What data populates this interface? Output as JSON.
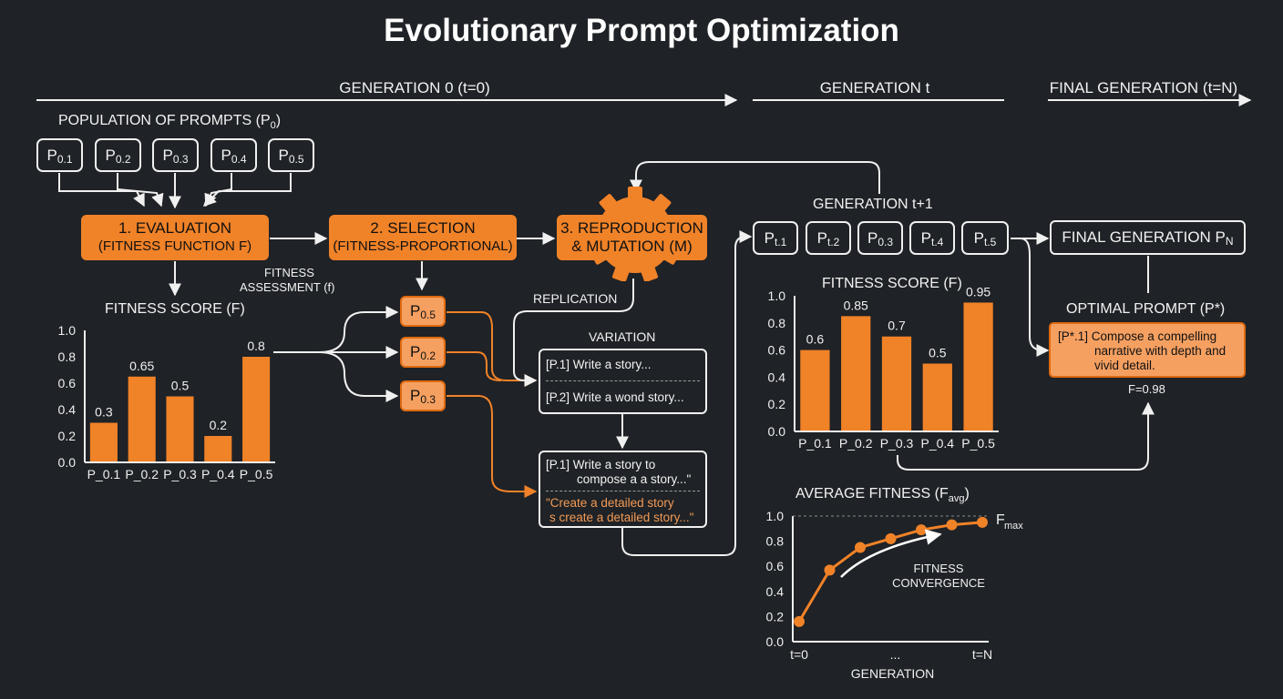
{
  "title": "Evolutionary Prompt Optimization",
  "generations": {
    "gen0": "GENERATION 0 (t=0)",
    "gent": "GENERATION t",
    "final": "FINAL GENERATION (t=N)",
    "next": "GENERATION t+1"
  },
  "population_label": "POPULATION OF PROMPTS (P",
  "population_label_sub": "0",
  "population_label_end": ")",
  "initial_prompts": [
    {
      "base": "P",
      "sub": "0.1"
    },
    {
      "base": "P",
      "sub": "0.2"
    },
    {
      "base": "P",
      "sub": "0.3"
    },
    {
      "base": "P",
      "sub": "0.4"
    },
    {
      "base": "P",
      "sub": "0.5"
    }
  ],
  "stages": {
    "evaluation_line1": "1. EVALUATION",
    "evaluation_line2": "(FITNESS FUNCTION F)",
    "selection_line1": "2. SELECTION",
    "selection_line2": "(FITNESS-PROPORTIONAL)",
    "reproduction_line1": "3. REPRODUCTION",
    "reproduction_line2": "& MUTATION (M)"
  },
  "fitness_assessment_line1": "FITNESS",
  "fitness_assessment_line2": "ASSESSMENT (f)",
  "selected_prompts": [
    {
      "base": "P",
      "sub": "0.5"
    },
    {
      "base": "P",
      "sub": "0.2"
    },
    {
      "base": "P",
      "sub": "0.3"
    }
  ],
  "replication_label": "REPLICATION",
  "variation_label": "VARIATION",
  "variation_box": {
    "line1": "[P.1] Write a story...",
    "line2": "[P.2] Write a wond story..."
  },
  "mutation_box": {
    "line1": "[P.1] Write a story to",
    "line2": "compose a a story...\"",
    "line3": "\"Create a detailed story",
    "line4": "s create a detailed story...\""
  },
  "next_prompts": [
    {
      "base": "P",
      "sub": "t.1"
    },
    {
      "base": "P",
      "sub": "t.2"
    },
    {
      "base": "P",
      "sub": "0.3"
    },
    {
      "base": "P",
      "sub": "t.4"
    },
    {
      "base": "P",
      "sub": "t.5"
    }
  ],
  "final_generation_label": "FINAL GENERATION P",
  "final_generation_sub": "N",
  "optimal_prompt_label": "OPTIMAL PROMPT (P*)",
  "optimal_prompt_text_line1": "[P*.1] Compose a compelling",
  "optimal_prompt_text_line2": "narrative with depth and",
  "optimal_prompt_text_line3": "vivid detail.",
  "optimal_fitness": "F=0.98",
  "colors": {
    "background": "#1f2226",
    "accent": "#f08228",
    "accent_light": "#f5a061",
    "line": "#f0f0f0"
  },
  "chart_data": [
    {
      "type": "bar",
      "title": "FITNESS SCORE (F)",
      "categories": [
        "P_0.1",
        "P_0.2",
        "P_0.3",
        "P_0.4",
        "P_0.5"
      ],
      "values": [
        0.3,
        0.65,
        0.5,
        0.2,
        0.8
      ],
      "value_labels": [
        "0.3",
        "0.65",
        "0.5",
        "0.2",
        "0.8"
      ],
      "yticks": [
        "0.0",
        "0.2",
        "0.4",
        "0.6",
        "0.8",
        "1.0"
      ],
      "ylim": [
        0,
        1.0
      ]
    },
    {
      "type": "bar",
      "title": "FITNESS SCORE (F)",
      "categories": [
        "P_0.1",
        "P_0.2",
        "P_0.3",
        "P_0.4",
        "P_0.5"
      ],
      "values": [
        0.6,
        0.85,
        0.7,
        0.5,
        0.95
      ],
      "value_labels": [
        "0.6",
        "0.85",
        "0.7",
        "0.5",
        "0.95"
      ],
      "yticks": [
        "0.0",
        "0.2",
        "0.4",
        "0.6",
        "0.8",
        "1.0"
      ],
      "ylim": [
        0,
        1.0
      ]
    },
    {
      "type": "line",
      "title": "AVERAGE FITNESS (F",
      "title_sub": "avg",
      "title_end": ")",
      "xlabel": "GENERATION",
      "x_ticks": [
        "t=0",
        "...",
        "t=N"
      ],
      "yticks": [
        "0.0",
        "0.2",
        "0.4",
        "0.6",
        "0.8",
        "1.0"
      ],
      "ylim": [
        0,
        1.0
      ],
      "values": [
        0.16,
        0.57,
        0.75,
        0.82,
        0.89,
        0.93,
        0.95
      ],
      "fmax_label": "F",
      "fmax_sub": "max",
      "annotation_line1": "FITNESS",
      "annotation_line2": "CONVERGENCE"
    }
  ]
}
